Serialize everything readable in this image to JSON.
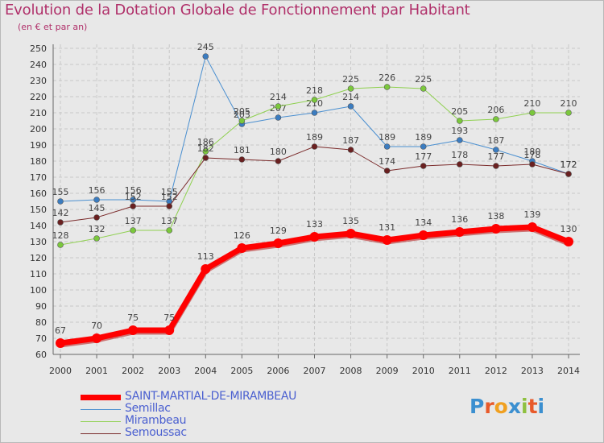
{
  "title": "Evolution de la Dotation Globale de Fonctionnement par Habitant",
  "subtitle": "(en € et par an)",
  "brand": "Proxiti",
  "colors": {
    "title": "#b0306a",
    "legend_text": "#4a5fd0",
    "axis_text": "#333333",
    "grid": "#c8c8c8"
  },
  "chart_data": {
    "type": "line",
    "title": "Evolution de la Dotation Globale de Fonctionnement par Habitant",
    "subtitle": "(en € et par an)",
    "xlabel": "",
    "ylabel": "",
    "ylim": [
      60,
      250
    ],
    "ytick_step": 10,
    "grid": true,
    "legend_position": "bottom-left",
    "x": [
      "2000",
      "2001",
      "2002",
      "2003",
      "2004",
      "2005",
      "2006",
      "2007",
      "2008",
      "2009",
      "2010",
      "2011",
      "2012",
      "2013",
      "2014"
    ],
    "series": [
      {
        "name": "Semillac",
        "color": "#4a8fd0",
        "marker": "#3b7cc0",
        "width": 1,
        "values": [
          155,
          156,
          156,
          155,
          245,
          203,
          207,
          210,
          214,
          189,
          189,
          193,
          187,
          180,
          172
        ]
      },
      {
        "name": "Mirambeau",
        "color": "#8fd050",
        "marker": "#7bc83c",
        "width": 1,
        "values": [
          128,
          132,
          137,
          137,
          186,
          205,
          214,
          218,
          225,
          226,
          225,
          205,
          206,
          210,
          210
        ]
      },
      {
        "name": "Semoussac",
        "color": "#7a2a2a",
        "marker": "#6a2020",
        "width": 1,
        "values": [
          142,
          145,
          152,
          152,
          182,
          181,
          180,
          189,
          187,
          174,
          177,
          178,
          177,
          178,
          172
        ]
      },
      {
        "name": "SAINT-MARTIAL-DE-MIRAMBEAU",
        "color": "#ff0000",
        "marker": "#ff0000",
        "width": 7,
        "values": [
          67,
          70,
          75,
          75,
          113,
          126,
          129,
          133,
          135,
          131,
          134,
          136,
          138,
          139,
          130
        ]
      }
    ],
    "legend_order": [
      "SAINT-MARTIAL-DE-MIRAMBEAU",
      "Semillac",
      "Mirambeau",
      "Semoussac"
    ]
  }
}
